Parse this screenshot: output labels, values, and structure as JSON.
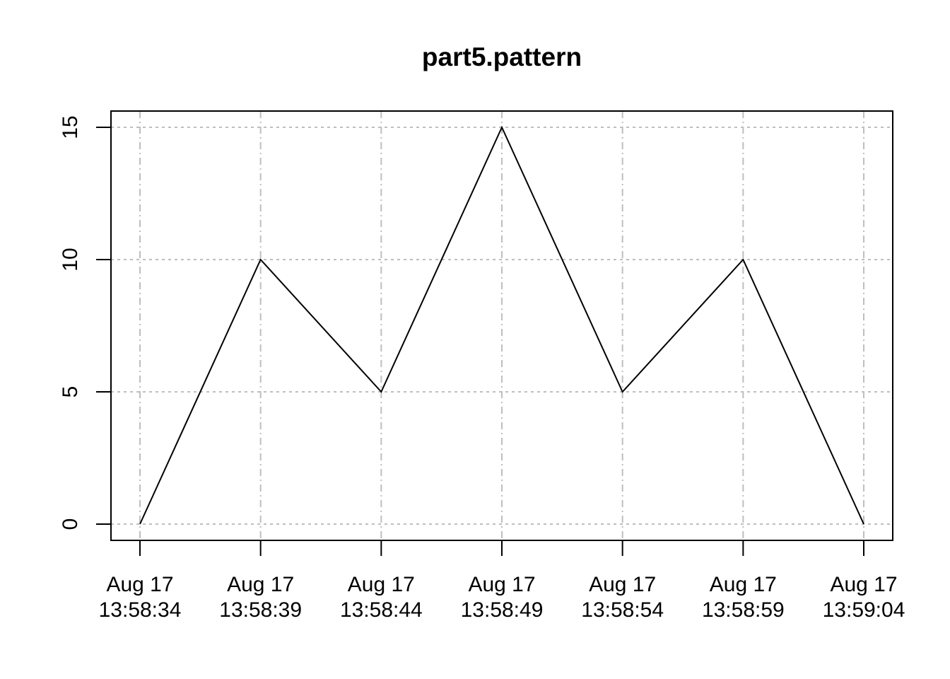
{
  "chart_data": {
    "type": "line",
    "title": "part5.pattern",
    "xlabel": "",
    "ylabel": "",
    "x": [
      "Aug 17 13:58:34",
      "Aug 17 13:58:39",
      "Aug 17 13:58:44",
      "Aug 17 13:58:49",
      "Aug 17 13:58:54",
      "Aug 17 13:58:59",
      "Aug 17 13:59:04"
    ],
    "x_tick_labels": [
      {
        "date": "Aug 17",
        "time": "13:58:34"
      },
      {
        "date": "Aug 17",
        "time": "13:58:39"
      },
      {
        "date": "Aug 17",
        "time": "13:58:44"
      },
      {
        "date": "Aug 17",
        "time": "13:58:49"
      },
      {
        "date": "Aug 17",
        "time": "13:58:54"
      },
      {
        "date": "Aug 17",
        "time": "13:58:59"
      },
      {
        "date": "Aug 17",
        "time": "13:59:04"
      }
    ],
    "series": [
      {
        "values": [
          0,
          10,
          5,
          15,
          5,
          10,
          0
        ]
      }
    ],
    "y_ticks": [
      "0",
      "5",
      "10",
      "15"
    ],
    "ylim": [
      0,
      15
    ],
    "grid": true,
    "line_color": "#000000",
    "grid_color": "#bebebe"
  }
}
